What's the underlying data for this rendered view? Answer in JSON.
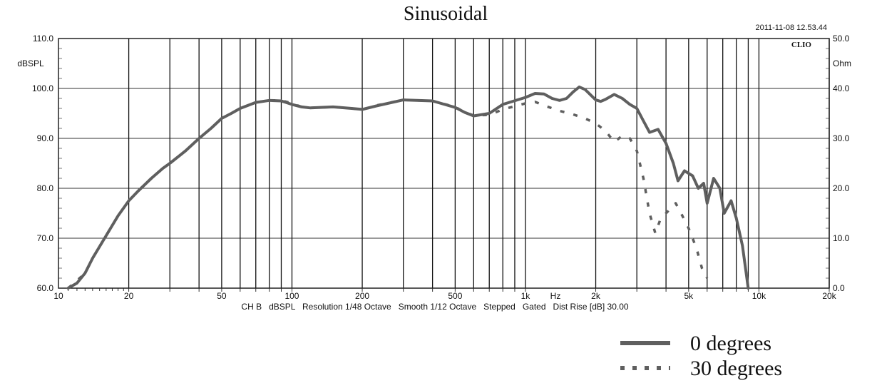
{
  "chart_data": {
    "type": "line",
    "title": "Sinusoidal",
    "timestamp": "2011-11-08 12.53.44",
    "brand": "CLIO",
    "x_scale": "log",
    "xlim": [
      10,
      20000
    ],
    "ylim": [
      60,
      110
    ],
    "y2lim": [
      0,
      50
    ],
    "ylabel": "dBSPL",
    "y2label": "Ohm",
    "y_ticks": [
      {
        "value": 110,
        "label": "110.0"
      },
      {
        "value": 100,
        "label": "100.0"
      },
      {
        "value": 90,
        "label": "90.0"
      },
      {
        "value": 80,
        "label": "80.0"
      },
      {
        "value": 70,
        "label": "70.0"
      },
      {
        "value": 60,
        "label": "60.0"
      }
    ],
    "y2_ticks": [
      {
        "value": 50,
        "label": "50.0"
      },
      {
        "value": 40,
        "label": "40.0"
      },
      {
        "value": 30,
        "label": "30.0"
      },
      {
        "value": 20,
        "label": "20.0"
      },
      {
        "value": 10,
        "label": "10.0"
      },
      {
        "value": 0,
        "label": "0.0"
      }
    ],
    "x_ticks": [
      {
        "value": 10,
        "label": "10"
      },
      {
        "value": 20,
        "label": "20"
      },
      {
        "value": 50,
        "label": "50"
      },
      {
        "value": 100,
        "label": "100"
      },
      {
        "value": 200,
        "label": "200"
      },
      {
        "value": 500,
        "label": "500"
      },
      {
        "value": 1000,
        "label": "1k"
      },
      {
        "value": 2000,
        "label": "2k"
      },
      {
        "value": 5000,
        "label": "5k"
      },
      {
        "value": 10000,
        "label": "10k"
      },
      {
        "value": 20000,
        "label": "20k"
      }
    ],
    "x_unit_label": "Hz",
    "x_grid": [
      20,
      30,
      40,
      50,
      60,
      70,
      80,
      90,
      100,
      200,
      300,
      400,
      500,
      600,
      700,
      800,
      900,
      1000,
      2000,
      3000,
      4000,
      5000,
      6000,
      7000,
      8000,
      9000,
      10000,
      20000
    ],
    "info_line": "CH B   dBSPL   Resolution 1/48 Octave   Smooth 1/12 Octave   Stepped   Gated   Dist Rise [dB] 30.00",
    "series": [
      {
        "name": "0 degrees",
        "style": "solid",
        "color": "#5f5f5f",
        "points": [
          [
            11,
            60
          ],
          [
            12,
            61
          ],
          [
            13,
            63
          ],
          [
            14,
            66
          ],
          [
            16,
            70.5
          ],
          [
            18,
            74.5
          ],
          [
            20,
            77.5
          ],
          [
            22,
            79.5
          ],
          [
            25,
            82
          ],
          [
            28,
            84
          ],
          [
            30,
            85
          ],
          [
            35,
            87.5
          ],
          [
            40,
            90
          ],
          [
            45,
            92
          ],
          [
            50,
            94
          ],
          [
            55,
            95
          ],
          [
            60,
            96
          ],
          [
            70,
            97.2
          ],
          [
            80,
            97.6
          ],
          [
            90,
            97.5
          ],
          [
            100,
            96.8
          ],
          [
            110,
            96.3
          ],
          [
            120,
            96.1
          ],
          [
            150,
            96.3
          ],
          [
            180,
            96
          ],
          [
            200,
            95.8
          ],
          [
            230,
            96.5
          ],
          [
            300,
            97.7
          ],
          [
            400,
            97.5
          ],
          [
            500,
            96.2
          ],
          [
            550,
            95.2
          ],
          [
            600,
            94.5
          ],
          [
            700,
            95
          ],
          [
            800,
            96.8
          ],
          [
            1000,
            98.2
          ],
          [
            1100,
            99
          ],
          [
            1200,
            98.9
          ],
          [
            1300,
            98
          ],
          [
            1400,
            97.6
          ],
          [
            1500,
            98
          ],
          [
            1600,
            99.3
          ],
          [
            1700,
            100.3
          ],
          [
            1800,
            99.8
          ],
          [
            2000,
            97.7
          ],
          [
            2100,
            97.4
          ],
          [
            2200,
            97.8
          ],
          [
            2400,
            98.8
          ],
          [
            2600,
            98
          ],
          [
            2800,
            96.8
          ],
          [
            3000,
            96
          ],
          [
            3200,
            93.5
          ],
          [
            3400,
            91.2
          ],
          [
            3700,
            91.8
          ],
          [
            4000,
            89
          ],
          [
            4300,
            85
          ],
          [
            4500,
            81.5
          ],
          [
            4800,
            83.5
          ],
          [
            5200,
            82.5
          ],
          [
            5500,
            80
          ],
          [
            5800,
            81
          ],
          [
            6000,
            77
          ],
          [
            6400,
            82
          ],
          [
            6800,
            80
          ],
          [
            7100,
            75
          ],
          [
            7600,
            77.5
          ],
          [
            8000,
            74
          ],
          [
            8500,
            68.5
          ],
          [
            9000,
            60
          ]
        ]
      },
      {
        "name": "30 degrees",
        "style": "dotted",
        "color": "#5f5f5f",
        "points": [
          [
            11,
            60
          ],
          [
            12,
            61.5
          ],
          [
            13,
            63
          ],
          [
            14,
            66
          ],
          [
            16,
            70.5
          ],
          [
            18,
            74.5
          ],
          [
            20,
            77.5
          ],
          [
            22,
            79.5
          ],
          [
            25,
            82
          ],
          [
            28,
            84
          ],
          [
            30,
            85
          ],
          [
            35,
            87.5
          ],
          [
            40,
            90
          ],
          [
            45,
            92
          ],
          [
            50,
            94
          ],
          [
            55,
            95
          ],
          [
            60,
            96
          ],
          [
            70,
            97.2
          ],
          [
            80,
            97.6
          ],
          [
            90,
            97.6
          ],
          [
            100,
            97
          ],
          [
            110,
            96.3
          ],
          [
            120,
            96.1
          ],
          [
            150,
            96.3
          ],
          [
            180,
            96
          ],
          [
            200,
            95.8
          ],
          [
            230,
            96.6
          ],
          [
            300,
            97.7
          ],
          [
            400,
            97.5
          ],
          [
            500,
            96.3
          ],
          [
            550,
            95.2
          ],
          [
            600,
            94.6
          ],
          [
            700,
            94.7
          ],
          [
            800,
            95.8
          ],
          [
            1000,
            97
          ],
          [
            1100,
            97.3
          ],
          [
            1200,
            96.6
          ],
          [
            1400,
            95.5
          ],
          [
            1600,
            94.8
          ],
          [
            1800,
            94
          ],
          [
            2000,
            93
          ],
          [
            2200,
            91.5
          ],
          [
            2400,
            89.3
          ],
          [
            2600,
            90.5
          ],
          [
            2800,
            90
          ],
          [
            3000,
            87.5
          ],
          [
            3200,
            82
          ],
          [
            3400,
            75
          ],
          [
            3600,
            71
          ],
          [
            3800,
            74
          ],
          [
            4000,
            75
          ],
          [
            4400,
            77
          ],
          [
            4700,
            74.5
          ],
          [
            5000,
            72
          ],
          [
            5400,
            68
          ],
          [
            5700,
            64
          ],
          [
            6000,
            62
          ]
        ]
      }
    ]
  }
}
